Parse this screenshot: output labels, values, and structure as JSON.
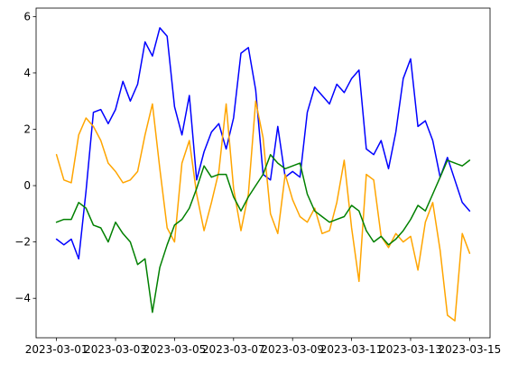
{
  "chart_data": {
    "type": "line",
    "title": "",
    "xlabel": "",
    "ylabel": "",
    "grid": false,
    "legend": "none",
    "xlim": [
      "2023-03-01",
      "2023-03-15"
    ],
    "ylim": [
      -5.4,
      6.3
    ],
    "x_ticks": [
      "2023-03-01",
      "2023-03-03",
      "2023-03-05",
      "2023-03-07",
      "2023-03-09",
      "2023-03-11",
      "2023-03-13",
      "2023-03-15"
    ],
    "y_ticks": [
      -4,
      -2,
      0,
      2,
      4,
      6
    ],
    "y_tick_labels": [
      "−4",
      "−2",
      "0",
      "2",
      "4",
      "6"
    ],
    "series": [
      {
        "color": "#0000ff",
        "points": [
          [
            "2023-03-01",
            -1.9
          ],
          [
            "2023-03-01 06:00",
            -2.1
          ],
          [
            "2023-03-01 12:00",
            -1.9
          ],
          [
            "2023-03-01 18:00",
            -2.6
          ],
          [
            "2023-03-02",
            -0.2
          ],
          [
            "2023-03-02 06:00",
            2.6
          ],
          [
            "2023-03-02 12:00",
            2.7
          ],
          [
            "2023-03-02 18:00",
            2.2
          ],
          [
            "2023-03-03",
            2.7
          ],
          [
            "2023-03-03 06:00",
            3.7
          ],
          [
            "2023-03-03 12:00",
            3.0
          ],
          [
            "2023-03-03 18:00",
            3.6
          ],
          [
            "2023-03-04",
            5.1
          ],
          [
            "2023-03-04 06:00",
            4.6
          ],
          [
            "2023-03-04 12:00",
            5.6
          ],
          [
            "2023-03-04 18:00",
            5.3
          ],
          [
            "2023-03-05",
            2.8
          ],
          [
            "2023-03-05 06:00",
            1.8
          ],
          [
            "2023-03-05 12:00",
            3.2
          ],
          [
            "2023-03-05 18:00",
            0.2
          ],
          [
            "2023-03-06",
            1.2
          ],
          [
            "2023-03-06 06:00",
            1.9
          ],
          [
            "2023-03-06 12:00",
            2.2
          ],
          [
            "2023-03-06 18:00",
            1.3
          ],
          [
            "2023-03-07",
            2.4
          ],
          [
            "2023-03-07 06:00",
            4.7
          ],
          [
            "2023-03-07 12:00",
            4.9
          ],
          [
            "2023-03-07 18:00",
            3.4
          ],
          [
            "2023-03-08",
            0.4
          ],
          [
            "2023-03-08 06:00",
            0.2
          ],
          [
            "2023-03-08 12:00",
            2.1
          ],
          [
            "2023-03-08 18:00",
            0.3
          ],
          [
            "2023-03-09",
            0.5
          ],
          [
            "2023-03-09 06:00",
            0.3
          ],
          [
            "2023-03-09 12:00",
            2.6
          ],
          [
            "2023-03-09 18:00",
            3.5
          ],
          [
            "2023-03-10",
            3.2
          ],
          [
            "2023-03-10 06:00",
            2.9
          ],
          [
            "2023-03-10 12:00",
            3.6
          ],
          [
            "2023-03-10 18:00",
            3.3
          ],
          [
            "2023-03-11",
            3.8
          ],
          [
            "2023-03-11 06:00",
            4.1
          ],
          [
            "2023-03-11 12:00",
            1.3
          ],
          [
            "2023-03-11 18:00",
            1.1
          ],
          [
            "2023-03-12",
            1.6
          ],
          [
            "2023-03-12 06:00",
            0.6
          ],
          [
            "2023-03-12 12:00",
            1.9
          ],
          [
            "2023-03-12 18:00",
            3.8
          ],
          [
            "2023-03-13",
            4.5
          ],
          [
            "2023-03-13 06:00",
            2.1
          ],
          [
            "2023-03-13 12:00",
            2.3
          ],
          [
            "2023-03-13 18:00",
            1.6
          ],
          [
            "2023-03-14",
            0.3
          ],
          [
            "2023-03-14 06:00",
            1.0
          ],
          [
            "2023-03-14 12:00",
            0.2
          ],
          [
            "2023-03-14 18:00",
            -0.6
          ],
          [
            "2023-03-15",
            -0.9
          ]
        ]
      },
      {
        "color": "#ffa500",
        "points": [
          [
            "2023-03-01",
            1.1
          ],
          [
            "2023-03-01 06:00",
            0.2
          ],
          [
            "2023-03-01 12:00",
            0.1
          ],
          [
            "2023-03-01 18:00",
            1.8
          ],
          [
            "2023-03-02",
            2.4
          ],
          [
            "2023-03-02 06:00",
            2.1
          ],
          [
            "2023-03-02 12:00",
            1.6
          ],
          [
            "2023-03-02 18:00",
            0.8
          ],
          [
            "2023-03-03",
            0.5
          ],
          [
            "2023-03-03 06:00",
            0.1
          ],
          [
            "2023-03-03 12:00",
            0.2
          ],
          [
            "2023-03-03 18:00",
            0.5
          ],
          [
            "2023-03-04",
            1.8
          ],
          [
            "2023-03-04 06:00",
            2.9
          ],
          [
            "2023-03-04 12:00",
            0.6
          ],
          [
            "2023-03-04 18:00",
            -1.5
          ],
          [
            "2023-03-05",
            -2.0
          ],
          [
            "2023-03-05 06:00",
            0.8
          ],
          [
            "2023-03-05 12:00",
            1.6
          ],
          [
            "2023-03-05 18:00",
            -0.3
          ],
          [
            "2023-03-06",
            -1.6
          ],
          [
            "2023-03-06 06:00",
            -0.6
          ],
          [
            "2023-03-06 12:00",
            0.5
          ],
          [
            "2023-03-06 18:00",
            2.9
          ],
          [
            "2023-03-07",
            -0.1
          ],
          [
            "2023-03-07 06:00",
            -1.6
          ],
          [
            "2023-03-07 12:00",
            -0.3
          ],
          [
            "2023-03-07 18:00",
            3.0
          ],
          [
            "2023-03-08",
            1.7
          ],
          [
            "2023-03-08 06:00",
            -1.0
          ],
          [
            "2023-03-08 12:00",
            -1.7
          ],
          [
            "2023-03-08 18:00",
            0.4
          ],
          [
            "2023-03-09",
            -0.5
          ],
          [
            "2023-03-09 06:00",
            -1.1
          ],
          [
            "2023-03-09 12:00",
            -1.3
          ],
          [
            "2023-03-09 18:00",
            -0.8
          ],
          [
            "2023-03-10",
            -1.7
          ],
          [
            "2023-03-10 06:00",
            -1.6
          ],
          [
            "2023-03-10 12:00",
            -0.6
          ],
          [
            "2023-03-10 18:00",
            0.9
          ],
          [
            "2023-03-11",
            -1.5
          ],
          [
            "2023-03-11 06:00",
            -3.4
          ],
          [
            "2023-03-11 12:00",
            0.4
          ],
          [
            "2023-03-11 18:00",
            0.2
          ],
          [
            "2023-03-12",
            -1.8
          ],
          [
            "2023-03-12 06:00",
            -2.2
          ],
          [
            "2023-03-12 12:00",
            -1.7
          ],
          [
            "2023-03-12 18:00",
            -2.0
          ],
          [
            "2023-03-13",
            -1.8
          ],
          [
            "2023-03-13 06:00",
            -3.0
          ],
          [
            "2023-03-13 12:00",
            -1.3
          ],
          [
            "2023-03-13 18:00",
            -0.6
          ],
          [
            "2023-03-14",
            -2.3
          ],
          [
            "2023-03-14 06:00",
            -4.6
          ],
          [
            "2023-03-14 12:00",
            -4.8
          ],
          [
            "2023-03-14 18:00",
            -1.7
          ],
          [
            "2023-03-15",
            -2.4
          ]
        ]
      },
      {
        "color": "#008000",
        "points": [
          [
            "2023-03-01",
            -1.3
          ],
          [
            "2023-03-01 06:00",
            -1.2
          ],
          [
            "2023-03-01 12:00",
            -1.2
          ],
          [
            "2023-03-01 18:00",
            -0.6
          ],
          [
            "2023-03-02",
            -0.8
          ],
          [
            "2023-03-02 06:00",
            -1.4
          ],
          [
            "2023-03-02 12:00",
            -1.5
          ],
          [
            "2023-03-02 18:00",
            -2.0
          ],
          [
            "2023-03-03",
            -1.3
          ],
          [
            "2023-03-03 06:00",
            -1.7
          ],
          [
            "2023-03-03 12:00",
            -2.0
          ],
          [
            "2023-03-03 18:00",
            -2.8
          ],
          [
            "2023-03-04",
            -2.6
          ],
          [
            "2023-03-04 06:00",
            -4.5
          ],
          [
            "2023-03-04 12:00",
            -2.9
          ],
          [
            "2023-03-04 18:00",
            -2.1
          ],
          [
            "2023-03-05",
            -1.4
          ],
          [
            "2023-03-05 06:00",
            -1.2
          ],
          [
            "2023-03-05 12:00",
            -0.8
          ],
          [
            "2023-03-05 18:00",
            -0.1
          ],
          [
            "2023-03-06",
            0.7
          ],
          [
            "2023-03-06 06:00",
            0.3
          ],
          [
            "2023-03-06 12:00",
            0.4
          ],
          [
            "2023-03-06 18:00",
            0.4
          ],
          [
            "2023-03-07",
            -0.4
          ],
          [
            "2023-03-07 06:00",
            -0.9
          ],
          [
            "2023-03-07 12:00",
            -0.4
          ],
          [
            "2023-03-07 18:00",
            0.0
          ],
          [
            "2023-03-08",
            0.4
          ],
          [
            "2023-03-08 06:00",
            1.1
          ],
          [
            "2023-03-08 12:00",
            0.8
          ],
          [
            "2023-03-08 18:00",
            0.6
          ],
          [
            "2023-03-09",
            0.7
          ],
          [
            "2023-03-09 06:00",
            0.8
          ],
          [
            "2023-03-09 12:00",
            -0.3
          ],
          [
            "2023-03-09 18:00",
            -0.9
          ],
          [
            "2023-03-10",
            -1.1
          ],
          [
            "2023-03-10 06:00",
            -1.3
          ],
          [
            "2023-03-10 12:00",
            -1.2
          ],
          [
            "2023-03-10 18:00",
            -1.1
          ],
          [
            "2023-03-11",
            -0.7
          ],
          [
            "2023-03-11 06:00",
            -0.9
          ],
          [
            "2023-03-11 12:00",
            -1.6
          ],
          [
            "2023-03-11 18:00",
            -2.0
          ],
          [
            "2023-03-12",
            -1.8
          ],
          [
            "2023-03-12 06:00",
            -2.1
          ],
          [
            "2023-03-12 12:00",
            -1.9
          ],
          [
            "2023-03-12 18:00",
            -1.6
          ],
          [
            "2023-03-13",
            -1.2
          ],
          [
            "2023-03-13 06:00",
            -0.7
          ],
          [
            "2023-03-13 12:00",
            -0.9
          ],
          [
            "2023-03-13 18:00",
            -0.3
          ],
          [
            "2023-03-14",
            0.3
          ],
          [
            "2023-03-14 06:00",
            0.9
          ],
          [
            "2023-03-14 12:00",
            0.8
          ],
          [
            "2023-03-14 18:00",
            0.7
          ],
          [
            "2023-03-15",
            0.9
          ]
        ]
      }
    ]
  }
}
